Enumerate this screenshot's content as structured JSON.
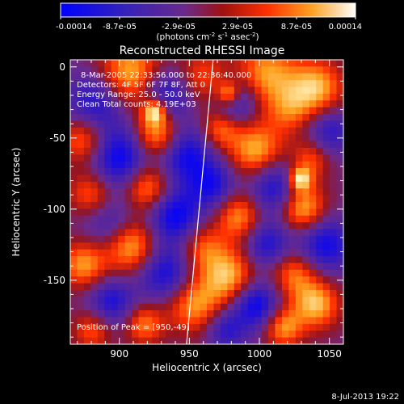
{
  "chart_data": {
    "type": "heatmap",
    "title": "Reconstructed RHESSI Image",
    "xlabel": "Heliocentric X (arcsec)",
    "ylabel": "Heliocentric Y (arcsec)",
    "xlim": [
      865,
      1060
    ],
    "ylim": [
      -195,
      5
    ],
    "x_ticks": [
      900,
      950,
      1000,
      1050
    ],
    "y_ticks": [
      0,
      -50,
      -100,
      -150
    ],
    "colorbar": {
      "ticks": [
        "-0.00014",
        "-8.7e-05",
        "-2.9e-05",
        "2.9e-05",
        "8.7e-05",
        "0.00014"
      ],
      "min": -0.00014,
      "max": 0.00014
    },
    "annotations": [
      "8-Mar-2005 22:33:56.000  to  22:36:40.000",
      "Detectors: 4F 5F 6F 7F 8F, Att 0",
      "Energy Range: 25.0 - 50.0 keV",
      "Clean    Total counts: 4.19E+03"
    ],
    "peak_label": "Position of Peak = [950,-49]",
    "peak": [
      950,
      -49
    ],
    "limb_line": [
      [
        948,
        -195
      ],
      [
        967,
        5
      ]
    ],
    "blobs": [
      [
        0.22,
        0.06,
        1.0,
        0.09
      ],
      [
        0.48,
        0.07,
        0.6,
        0.07
      ],
      [
        0.72,
        0.05,
        0.8,
        0.08
      ],
      [
        0.9,
        0.1,
        0.9,
        0.07
      ],
      [
        0.35,
        0.12,
        -0.9,
        0.07
      ],
      [
        0.1,
        0.15,
        -0.8,
        0.08
      ],
      [
        0.6,
        0.15,
        -0.7,
        0.06
      ],
      [
        0.8,
        0.18,
        0.5,
        0.06
      ],
      [
        0.32,
        0.26,
        1.0,
        0.06
      ],
      [
        0.55,
        0.24,
        0.7,
        0.05
      ],
      [
        0.05,
        0.28,
        0.8,
        0.06
      ],
      [
        0.95,
        0.25,
        -0.6,
        0.06
      ],
      [
        0.18,
        0.35,
        -0.9,
        0.08
      ],
      [
        0.42,
        0.33,
        -0.8,
        0.07
      ],
      [
        0.68,
        0.32,
        0.9,
        0.07
      ],
      [
        0.88,
        0.35,
        0.6,
        0.05
      ],
      [
        0.28,
        0.45,
        0.9,
        0.06
      ],
      [
        0.52,
        0.44,
        -0.7,
        0.06
      ],
      [
        0.75,
        0.45,
        -0.8,
        0.07
      ],
      [
        0.08,
        0.47,
        0.7,
        0.06
      ],
      [
        0.62,
        0.55,
        0.8,
        0.06
      ],
      [
        0.85,
        0.52,
        1.0,
        0.06
      ],
      [
        0.38,
        0.55,
        -0.9,
        0.07
      ],
      [
        0.15,
        0.58,
        -0.6,
        0.07
      ],
      [
        0.22,
        0.65,
        1.0,
        0.07
      ],
      [
        0.48,
        0.66,
        0.6,
        0.06
      ],
      [
        0.72,
        0.65,
        -0.7,
        0.06
      ],
      [
        0.93,
        0.65,
        -0.8,
        0.07
      ],
      [
        0.05,
        0.72,
        0.8,
        0.06
      ],
      [
        0.35,
        0.75,
        -0.8,
        0.07
      ],
      [
        0.58,
        0.76,
        0.9,
        0.07
      ],
      [
        0.82,
        0.75,
        0.7,
        0.06
      ],
      [
        0.15,
        0.85,
        -0.7,
        0.06
      ],
      [
        0.45,
        0.86,
        0.8,
        0.07
      ],
      [
        0.68,
        0.86,
        -0.9,
        0.06
      ],
      [
        0.9,
        0.86,
        0.9,
        0.06
      ],
      [
        0.27,
        0.93,
        0.7,
        0.05
      ],
      [
        0.57,
        0.95,
        -0.6,
        0.05
      ],
      [
        0.78,
        0.94,
        0.8,
        0.05
      ],
      [
        0.08,
        0.95,
        0.6,
        0.05
      ],
      [
        0.31,
        0.18,
        1.0,
        0.03
      ],
      [
        0.58,
        0.12,
        0.9,
        0.03
      ],
      [
        0.84,
        0.42,
        1.0,
        0.03
      ]
    ]
  },
  "footer": {
    "date": "8-Jul-2013 19:22"
  }
}
